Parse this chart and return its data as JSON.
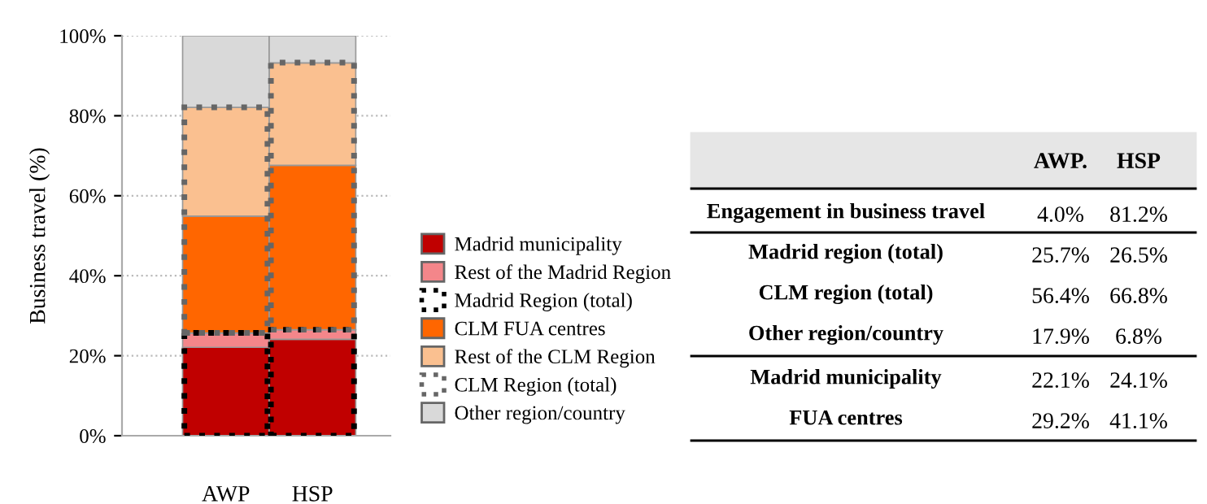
{
  "chart_data": [
    {
      "type": "bar",
      "stacked": true,
      "ylabel": "Business travel (%)",
      "categories": [
        "AWP",
        "HSP"
      ],
      "ylim": [
        0,
        100
      ],
      "yticks": [
        {
          "value": 0,
          "label": "0%"
        },
        {
          "value": 20,
          "label": "20%"
        },
        {
          "value": 40,
          "label": "40%"
        },
        {
          "value": 60,
          "label": "60%"
        },
        {
          "value": 80,
          "label": "80%"
        },
        {
          "value": 100,
          "label": "100%"
        }
      ],
      "grid": "y",
      "legend": "right",
      "series": [
        {
          "name": "Madrid municipality",
          "color": "#c00000",
          "values": [
            22.1,
            24.1
          ]
        },
        {
          "name": "Rest of the Madrid Region",
          "color": "#f4868a",
          "values": [
            3.6,
            2.4
          ]
        },
        {
          "name": "CLM FUA centres",
          "color": "#ff6600",
          "values": [
            29.2,
            41.1
          ]
        },
        {
          "name": "Rest of the CLM Region",
          "color": "#fac090",
          "values": [
            27.2,
            25.6
          ]
        },
        {
          "name": "Other region/country",
          "color": "#d9d9d9",
          "values": [
            17.9,
            6.8
          ]
        }
      ]
    },
    {
      "type": "bar",
      "categories": [
        null,
        null
      ],
      "ylim": [
        0,
        100
      ],
      "tick_labels": false,
      "line_style": "dotted",
      "legend": "right",
      "series": [
        {
          "name": "Madrid Region (total)",
          "color": "#000000",
          "values": [
            25.7,
            26.5
          ],
          "base": [
            0,
            0
          ]
        },
        {
          "name": "CLM Region (total)",
          "color": "#666666",
          "values": [
            56.4,
            66.8
          ],
          "base": [
            25.7,
            26.5
          ]
        }
      ]
    },
    {
      "type": "other",
      "categories": [
        "AWP.",
        "HSP"
      ],
      "y_categories": [
        "Engagement in business travel",
        "Madrid region (total)",
        "CLM region (total)",
        "Other region/country",
        "Madrid municipality",
        "FUA centres"
      ],
      "cell_labels": [
        [
          "4.0%",
          "81.2%"
        ],
        [
          "25.7%",
          "26.5%"
        ],
        [
          "56.4%",
          "66.8%"
        ],
        [
          "17.9%",
          "6.8%"
        ],
        [
          "22.1%",
          "24.1%"
        ],
        [
          "29.2%",
          "41.1%"
        ]
      ]
    }
  ]
}
